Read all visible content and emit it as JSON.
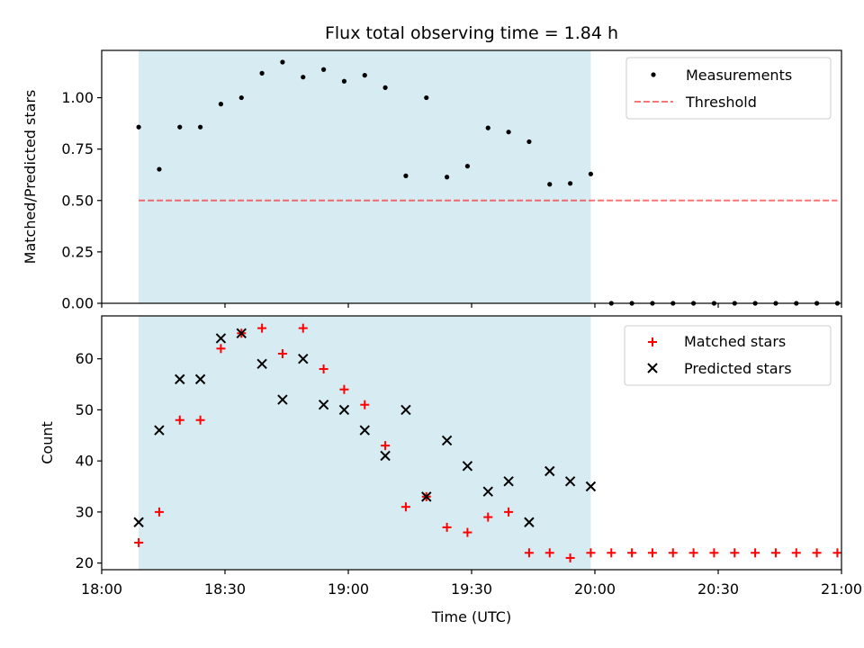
{
  "figure": {
    "title": "Flux total observing time = 1.84 h"
  },
  "chart_data": [
    {
      "type": "scatter",
      "title": "Flux total observing time = 1.84 h",
      "ylabel": "Matched/Predicted stars",
      "xlabel": "",
      "ylim": [
        0,
        1.23
      ],
      "y_ticks": [
        0,
        0.25,
        0.5,
        0.75,
        1.0
      ],
      "y_tick_labels": [
        "0.00",
        "0.25",
        "0.50",
        "0.75",
        "1.00"
      ],
      "grid": false,
      "legend_position": "upper right",
      "shaded_interval": {
        "start": "18:09",
        "end": "19:59",
        "color": "#add8e6"
      },
      "threshold": {
        "name": "Threshold",
        "value": 0.5,
        "x_start": "18:09",
        "x_end": "20:59",
        "color": "#ff0000",
        "style": "dashed"
      },
      "series": [
        {
          "name": "Measurements",
          "marker": "dot",
          "color": "#000000",
          "x": [
            "18:09",
            "18:14",
            "18:19",
            "18:24",
            "18:29",
            "18:34",
            "18:39",
            "18:44",
            "18:49",
            "18:54",
            "18:59",
            "19:04",
            "19:09",
            "19:14",
            "19:19",
            "19:24",
            "19:29",
            "19:34",
            "19:39",
            "19:44",
            "19:49",
            "19:54",
            "19:59",
            "20:04",
            "20:09",
            "20:14",
            "20:19",
            "20:24",
            "20:29",
            "20:34",
            "20:39",
            "20:44",
            "20:49",
            "20:54",
            "20:59"
          ],
          "y": [
            0.857,
            0.652,
            0.857,
            0.857,
            0.969,
            1.0,
            1.119,
            1.173,
            1.1,
            1.137,
            1.08,
            1.109,
            1.049,
            0.62,
            1.0,
            0.614,
            0.667,
            0.853,
            0.833,
            0.786,
            0.579,
            0.583,
            0.629,
            0,
            0,
            0,
            0,
            0,
            0,
            0,
            0,
            0,
            0,
            0,
            0
          ]
        }
      ]
    },
    {
      "type": "scatter",
      "title": "",
      "ylabel": "Count",
      "xlabel": "Time (UTC)",
      "ylim": [
        18.7,
        68.4
      ],
      "y_ticks": [
        20,
        30,
        40,
        50,
        60
      ],
      "y_tick_labels": [
        "20",
        "30",
        "40",
        "50",
        "60"
      ],
      "x_range": [
        "18:00",
        "21:00"
      ],
      "x_ticks": [
        "18:00",
        "18:30",
        "19:00",
        "19:30",
        "20:00",
        "20:30",
        "21:00"
      ],
      "grid": false,
      "legend_position": "upper right",
      "shaded_interval": {
        "start": "18:09",
        "end": "19:59",
        "color": "#add8e6"
      },
      "series": [
        {
          "name": "Matched stars",
          "marker": "plus",
          "color": "#ff0000",
          "x": [
            "18:09",
            "18:14",
            "18:19",
            "18:24",
            "18:29",
            "18:34",
            "18:39",
            "18:44",
            "18:49",
            "18:54",
            "18:59",
            "19:04",
            "19:09",
            "19:14",
            "19:19",
            "19:24",
            "19:29",
            "19:34",
            "19:39",
            "19:44",
            "19:49",
            "19:54",
            "19:59",
            "20:04",
            "20:09",
            "20:14",
            "20:19",
            "20:24",
            "20:29",
            "20:34",
            "20:39",
            "20:44",
            "20:49",
            "20:54",
            "20:59"
          ],
          "y": [
            24,
            30,
            48,
            48,
            62,
            65,
            66,
            61,
            66,
            58,
            54,
            51,
            43,
            31,
            33,
            27,
            26,
            29,
            30,
            22,
            22,
            21,
            22,
            22,
            22,
            22,
            22,
            22,
            22,
            22,
            22,
            22,
            22,
            22,
            22
          ]
        },
        {
          "name": "Predicted stars",
          "marker": "x",
          "color": "#000000",
          "x": [
            "18:09",
            "18:14",
            "18:19",
            "18:24",
            "18:29",
            "18:34",
            "18:39",
            "18:44",
            "18:49",
            "18:54",
            "18:59",
            "19:04",
            "19:09",
            "19:14",
            "19:19",
            "19:24",
            "19:29",
            "19:34",
            "19:39",
            "19:44",
            "19:49",
            "19:54",
            "19:59"
          ],
          "y": [
            28,
            46,
            56,
            56,
            64,
            65,
            59,
            52,
            60,
            51,
            50,
            46,
            41,
            50,
            33,
            44,
            39,
            34,
            36,
            28,
            38,
            36,
            35
          ]
        }
      ]
    }
  ]
}
